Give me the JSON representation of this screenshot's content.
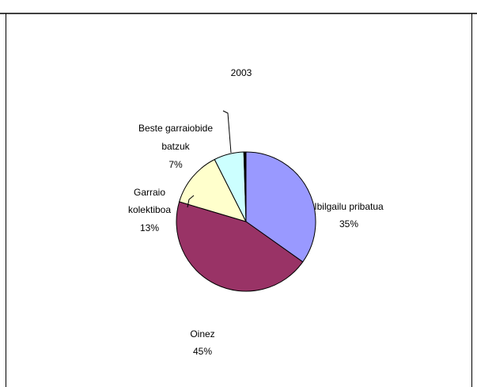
{
  "chart_data": {
    "type": "pie",
    "title": "2003",
    "slices": [
      {
        "label": "Ibilgailu pribatua",
        "value": 35,
        "percent_label": "35%",
        "color": "#9999ff"
      },
      {
        "label": "Oinez",
        "value": 45,
        "percent_label": "45%",
        "color": "#993366"
      },
      {
        "label": "Garraio kolektiboa",
        "value": 13,
        "percent_label": "13%",
        "color": "#ffffcc"
      },
      {
        "label": "Beste garraiobide batzuk",
        "value": 7,
        "percent_label": "7%",
        "color": "#ccffff"
      }
    ],
    "extra_slice": {
      "value": 0.5,
      "color": "#000000"
    },
    "legend": "none",
    "start_direction": "top",
    "direction": "clockwise"
  }
}
